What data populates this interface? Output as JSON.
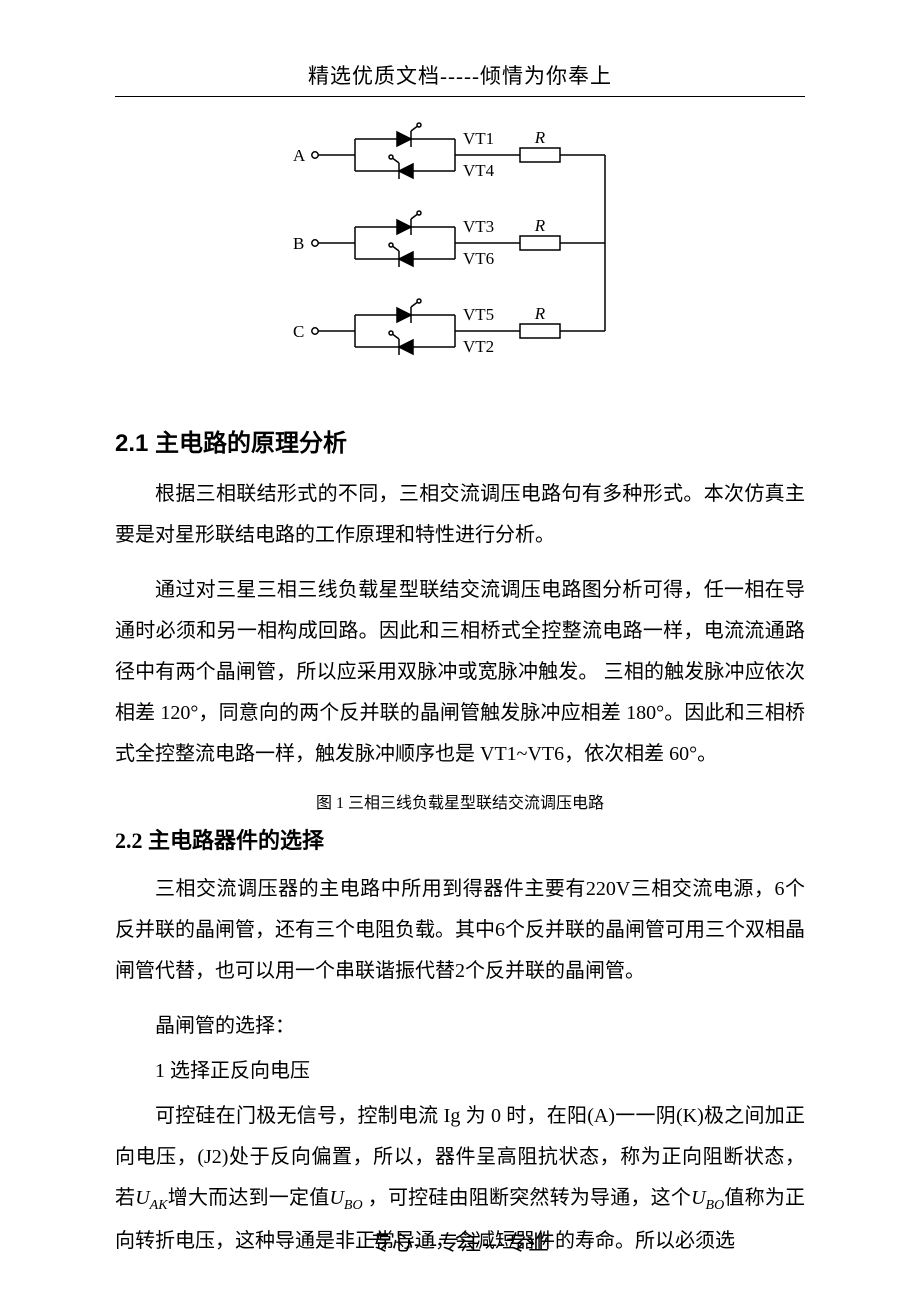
{
  "header": {
    "text": "精选优质文档-----倾情为你奉上"
  },
  "circuit": {
    "phases": [
      {
        "input": "A",
        "top_label": "VT1",
        "bottom_label": "VT4",
        "load": "R"
      },
      {
        "input": "B",
        "top_label": "VT3",
        "bottom_label": "VT6",
        "load": "R"
      },
      {
        "input": "C",
        "top_label": "VT5",
        "bottom_label": "VT2",
        "load": "R"
      }
    ],
    "style": {
      "stroke": "#000000",
      "stroke_width": 1.5,
      "label_fontsize": 17,
      "input_fontsize": 17,
      "terminal_radius": 3.2
    }
  },
  "section1": {
    "heading": "2.1 主电路的原理分析",
    "para1": "根据三相联结形式的不同，三相交流调压电路句有多种形式。本次仿真主要是对星形联结电路的工作原理和特性进行分析。",
    "para2": "通过对三星三相三线负载星型联结交流调压电路图分析可得，任一相在导通时必须和另一相构成回路。因此和三相桥式全控整流电路一样，电流流通路径中有两个晶闸管，所以应采用双脉冲或宽脉冲触发。 三相的触发脉冲应依次相差 120°，同意向的两个反并联的晶闸管触发脉冲应相差 180°。因此和三相桥式全控整流电路一样，触发脉冲顺序也是 VT1~VT6，依次相差 60°。"
  },
  "figcaption": "图 1  三相三线负载星型联结交流调压电路",
  "section2": {
    "heading": "2.2  主电路器件的选择",
    "para1": "三相交流调压器的主电路中所用到得器件主要有220V三相交流电源，6个反并联的晶闸管，还有三个电阻负载。其中6个反并联的晶闸管可用三个双相晶闸管代替，也可以用一个串联谐振代替2个反并联的晶闸管。",
    "line_select": "晶闸管的选择：",
    "line_item1": "1  选择正反向电压",
    "para2_pre": "可控硅在门极无信号，控制电流 Ig 为 0 时，在阳(A)一一阴(K)极之间加正向电压，(J2)处于反向偏置，所以，器件呈高阻抗状态，称为正向阻断状态，若",
    "para2_mid1": "增大而达到一定值",
    "para2_mid2": " ，可控硅由阻断突然转为导通，这个",
    "para2_end": "值称为正向转折电压，这种导通是非正常导通，会减短器件的寿命。所以必须选",
    "var_uak": "U",
    "var_uak_sub": "AK",
    "var_ubo": "U",
    "var_ubo_sub": "BO"
  },
  "footer": {
    "text": "专心---专注---专业"
  }
}
